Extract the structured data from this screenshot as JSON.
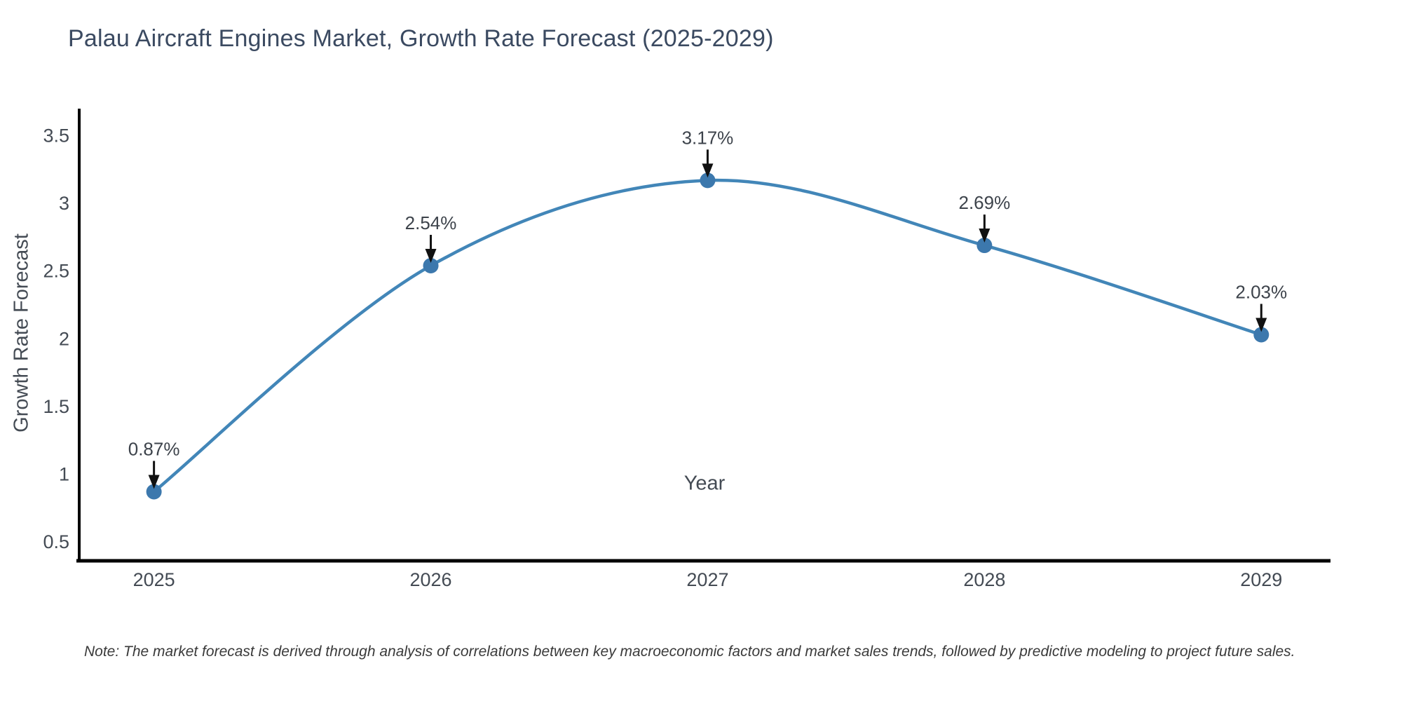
{
  "title": {
    "text": "Palau Aircraft Engines Market, Growth Rate Forecast (2025-2029)",
    "color": "#3b4a61"
  },
  "note": {
    "text": "Note: The market forecast is derived through analysis of correlations between key macroeconomic factors and market sales trends, followed by predictive modeling to project future sales."
  },
  "chart_data": {
    "type": "line",
    "line_shape": "spline",
    "title": "Palau Aircraft Engines Market, Growth Rate Forecast (2025-2029)",
    "xlabel": "Year",
    "ylabel": "Growth Rate Forecast",
    "x": [
      2025,
      2026,
      2027,
      2028,
      2029
    ],
    "series": [
      {
        "name": "Growth Rate Forecast",
        "values": [
          0.87,
          2.54,
          3.17,
          2.69,
          2.03
        ]
      }
    ],
    "point_labels": [
      "0.87%",
      "2.54%",
      "3.17%",
      "2.69%",
      "2.03%"
    ],
    "yticks": [
      0.5,
      1,
      1.5,
      2,
      2.5,
      3,
      3.5
    ],
    "xlim": [
      2024.73,
      2029.25
    ],
    "ylim": [
      0.36,
      3.7
    ],
    "grid": false,
    "legend": "none",
    "annotations_have_arrows": true,
    "colors": {
      "line": "#4286b8",
      "marker": "#3c78ad",
      "axis": "#000000",
      "arrow": "#111111",
      "tick_label": "#444b54",
      "annotation_text": "#3d434b"
    }
  }
}
